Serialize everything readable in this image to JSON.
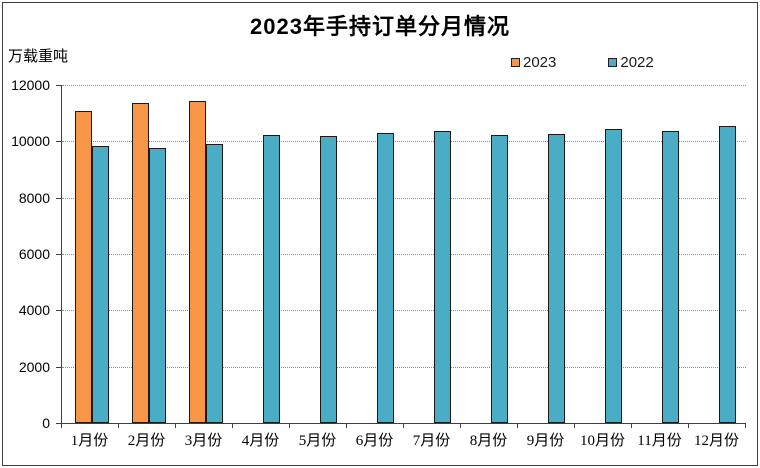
{
  "figure": {
    "title": "2023年手持订单分月情况",
    "unit_label": "万载重吨"
  },
  "chart_data": {
    "type": "bar",
    "title": "2023年手持订单分月情况",
    "ylabel": "万载重吨",
    "xlabel": "",
    "categories": [
      "1月份",
      "2月份",
      "3月份",
      "4月份",
      "5月份",
      "6月份",
      "7月份",
      "8月份",
      "9月份",
      "10月份",
      "11月份",
      "12月份"
    ],
    "series": [
      {
        "name": "2023",
        "color": "#F79646",
        "values": [
          11090,
          11360,
          11450,
          null,
          null,
          null,
          null,
          null,
          null,
          null,
          null,
          null
        ]
      },
      {
        "name": "2022",
        "color": "#4BACC6",
        "values": [
          9820,
          9750,
          9890,
          10220,
          10180,
          10290,
          10370,
          10210,
          10260,
          10430,
          10360,
          10530
        ]
      }
    ],
    "ylim": [
      0,
      12000
    ],
    "yticks": [
      0,
      2000,
      4000,
      6000,
      8000,
      10000,
      12000
    ],
    "grid": true,
    "gridline_style": "dotted",
    "legend_position": "top-right",
    "bar_border_color": "#1a1a1a",
    "axis_color": "#404040"
  }
}
